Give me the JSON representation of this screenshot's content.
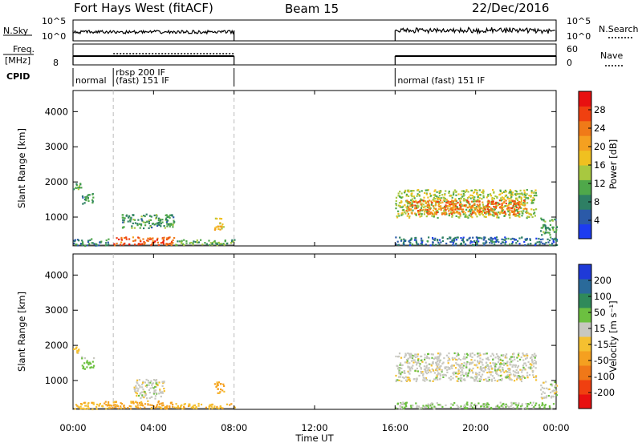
{
  "header": {
    "radar": "Fort Hays West (fitACF)",
    "beam": "Beam 15",
    "date": "22/Dec/2016"
  },
  "strips": {
    "nsky_label": "N.Sky",
    "nsky_ticks": [
      "10^5",
      "10^0"
    ],
    "nsearch_label": "N.Search",
    "freq_label_1": "Freq.",
    "freq_label_2": "[MHz]",
    "freq_ticks": [
      "8"
    ],
    "nave_label": "Nave",
    "nave_ticks": [
      "60",
      "0"
    ],
    "cpid_label": "CPID",
    "cpid_segments": [
      {
        "line1": "normal",
        "line2": "",
        "start_h": 0,
        "end_h": 2
      },
      {
        "line1": "rbsp 200 IF",
        "line2": "(fast) 151 IF",
        "start_h": 2,
        "end_h": 8
      },
      {
        "line1": "normal (fast) 151 IF",
        "line2": "",
        "start_h": 16,
        "end_h": 24
      }
    ]
  },
  "axes": {
    "xlabel": "Time UT",
    "ylabel": "Slant Range [km]",
    "x_ticks": [
      "00:00",
      "04:00",
      "08:00",
      "12:00",
      "16:00",
      "20:00",
      "00:00"
    ],
    "y_ticks": [
      "1000",
      "2000",
      "3000",
      "4000"
    ]
  },
  "colorbars": {
    "power": {
      "label": "Power [dB]",
      "ticks": [
        "4",
        "8",
        "12",
        "16",
        "20",
        "24",
        "28"
      ],
      "colors": [
        "#1d3cf0",
        "#2b5aa8",
        "#2e7f64",
        "#4fa84a",
        "#a8c840",
        "#f0c020",
        "#f5a020",
        "#f07a18",
        "#f04010",
        "#e81010"
      ]
    },
    "velocity": {
      "label": "Velocity [m s⁻¹]",
      "ticks": [
        "200",
        "100",
        "50",
        "15",
        "-15",
        "-50",
        "-100",
        "-200"
      ],
      "colors": [
        "#1f3ad8",
        "#2a6a9a",
        "#2f8a5a",
        "#6cc040",
        "#c8c8c0",
        "#f5c030",
        "#f5a020",
        "#f07818",
        "#f04010",
        "#e81010"
      ]
    }
  },
  "chart_data": [
    {
      "type": "heatmap",
      "panel": "power",
      "xlabel": "Time UT",
      "ylabel": "Slant Range [km]",
      "xlim": [
        0,
        24
      ],
      "ylim": [
        180,
        4600
      ],
      "colorbar_label": "Power [dB]",
      "colorbar_range": [
        0,
        32
      ],
      "regions": [
        {
          "t": [
            0.0,
            0.4
          ],
          "r": [
            1800,
            2000
          ],
          "dB": 10
        },
        {
          "t": [
            0.4,
            1.0
          ],
          "r": [
            1400,
            1700
          ],
          "dB": 9
        },
        {
          "t": [
            0.0,
            1.8
          ],
          "r": [
            200,
            400
          ],
          "dB": 8
        },
        {
          "t": [
            2.0,
            5.0
          ],
          "r": [
            220,
            450
          ],
          "dB": 26
        },
        {
          "t": [
            5.0,
            8.0
          ],
          "r": [
            220,
            380
          ],
          "dB": 12
        },
        {
          "t": [
            2.4,
            5.0
          ],
          "r": [
            700,
            1100
          ],
          "dB": 10
        },
        {
          "t": [
            7.0,
            7.5
          ],
          "r": [
            650,
            1000
          ],
          "dB": 18
        },
        {
          "t": [
            16.0,
            23.0
          ],
          "r": [
            1000,
            1800
          ],
          "dB": 14
        },
        {
          "t": [
            16.5,
            22.5
          ],
          "r": [
            1100,
            1500
          ],
          "dB": 24
        },
        {
          "t": [
            16.0,
            24.0
          ],
          "r": [
            220,
            450
          ],
          "dB": 6
        },
        {
          "t": [
            23.2,
            24.0
          ],
          "r": [
            500,
            1000
          ],
          "dB": 10
        }
      ]
    },
    {
      "type": "heatmap",
      "panel": "velocity",
      "xlabel": "Time UT",
      "ylabel": "Slant Range [km]",
      "xlim": [
        0,
        24
      ],
      "ylim": [
        180,
        4600
      ],
      "colorbar_label": "Velocity [m s⁻¹]",
      "colorbar_range": [
        -250,
        250
      ],
      "regions": [
        {
          "t": [
            0.0,
            0.4
          ],
          "r": [
            1800,
            2000
          ],
          "v": -30
        },
        {
          "t": [
            0.4,
            1.0
          ],
          "r": [
            1350,
            1700
          ],
          "v": 30
        },
        {
          "t": [
            0.0,
            1.8
          ],
          "r": [
            200,
            400
          ],
          "v": -40
        },
        {
          "t": [
            1.5,
            5.0
          ],
          "r": [
            220,
            450
          ],
          "v": -60
        },
        {
          "t": [
            3.0,
            4.5
          ],
          "r": [
            500,
            1050
          ],
          "v": 0
        },
        {
          "t": [
            5.0,
            8.0
          ],
          "r": [
            220,
            380
          ],
          "v": -40
        },
        {
          "t": [
            7.0,
            7.5
          ],
          "r": [
            650,
            1000
          ],
          "v": -60
        },
        {
          "t": [
            16.0,
            23.0
          ],
          "r": [
            1000,
            1800
          ],
          "v": 0
        },
        {
          "t": [
            16.0,
            24.0
          ],
          "r": [
            220,
            400
          ],
          "v": 20
        },
        {
          "t": [
            23.2,
            24.0
          ],
          "r": [
            500,
            1000
          ],
          "v": 0
        }
      ]
    }
  ]
}
